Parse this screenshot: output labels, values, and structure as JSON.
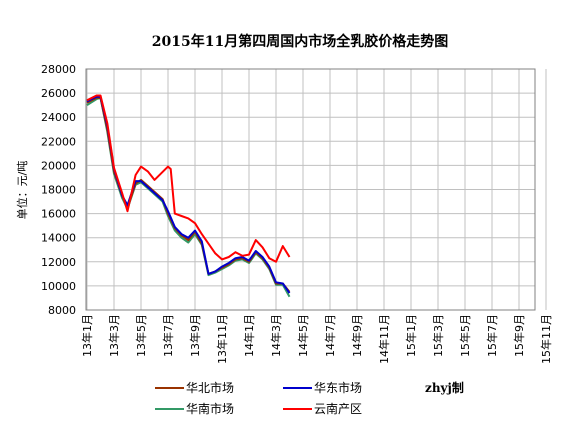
{
  "chart_data": {
    "type": "line",
    "title": "2015年11月第四周国内市场全乳胶价格走势图",
    "ylabel": "单位：元/吨",
    "xlabel": "",
    "ylim": [
      8000,
      28000
    ],
    "yticks": [
      8000,
      10000,
      12000,
      14000,
      16000,
      18000,
      20000,
      22000,
      24000,
      26000,
      28000
    ],
    "x_categories": [
      "13年1月",
      "13年3月",
      "13年5月",
      "13年7月",
      "13年9月",
      "13年11月",
      "14年1月",
      "14年3月",
      "14年5月",
      "14年7月",
      "14年9月",
      "14年11月",
      "15年1月",
      "15年3月",
      "15年5月",
      "15年7月",
      "15年9月",
      "15年11月"
    ],
    "grid": true,
    "legend_position": "bottom",
    "credit": "zhyj制",
    "series": [
      {
        "name": "华北市场",
        "color": "#993300",
        "points": [
          [
            0,
            25200
          ],
          [
            0.7,
            25600
          ],
          [
            1.0,
            25600
          ],
          [
            1.5,
            23000
          ],
          [
            2.0,
            19500
          ],
          [
            2.6,
            17500
          ],
          [
            3.0,
            16500
          ],
          [
            3.6,
            18500
          ],
          [
            4.0,
            18800
          ],
          [
            4.5,
            18300
          ],
          [
            5.0,
            17800
          ],
          [
            5.6,
            17200
          ],
          [
            6.0,
            16000
          ],
          [
            6.5,
            14800
          ],
          [
            7.0,
            14200
          ],
          [
            7.5,
            13800
          ],
          [
            8.0,
            14500
          ],
          [
            8.5,
            13500
          ],
          [
            9.0,
            11000
          ],
          [
            9.5,
            11200
          ],
          [
            10.0,
            11500
          ],
          [
            10.5,
            11800
          ],
          [
            11.0,
            12200
          ],
          [
            11.5,
            12300
          ],
          [
            12.0,
            12000
          ],
          [
            12.5,
            12800
          ],
          [
            13.0,
            12300
          ],
          [
            13.5,
            11500
          ],
          [
            14.0,
            10200
          ],
          [
            14.5,
            10200
          ],
          [
            15.0,
            9500
          ]
        ]
      },
      {
        "name": "华东市场",
        "color": "#0000cc",
        "points": [
          [
            0,
            25300
          ],
          [
            0.7,
            25700
          ],
          [
            1.0,
            25700
          ],
          [
            1.5,
            23300
          ],
          [
            2.0,
            19700
          ],
          [
            2.6,
            17500
          ],
          [
            3.0,
            16700
          ],
          [
            3.6,
            18700
          ],
          [
            4.0,
            18700
          ],
          [
            4.5,
            18200
          ],
          [
            5.0,
            17700
          ],
          [
            5.6,
            17100
          ],
          [
            6.0,
            16200
          ],
          [
            6.5,
            14900
          ],
          [
            7.0,
            14300
          ],
          [
            7.5,
            14000
          ],
          [
            8.0,
            14600
          ],
          [
            8.5,
            13700
          ],
          [
            9.0,
            11000
          ],
          [
            9.5,
            11200
          ],
          [
            10.0,
            11600
          ],
          [
            10.5,
            11900
          ],
          [
            11.0,
            12300
          ],
          [
            11.5,
            12400
          ],
          [
            12.0,
            12100
          ],
          [
            12.5,
            12900
          ],
          [
            13.0,
            12400
          ],
          [
            13.5,
            11600
          ],
          [
            14.0,
            10300
          ],
          [
            14.5,
            10200
          ],
          [
            15.0,
            9400
          ]
        ]
      },
      {
        "name": "华南市场",
        "color": "#339966",
        "points": [
          [
            0,
            25000
          ],
          [
            0.7,
            25500
          ],
          [
            1.0,
            25600
          ],
          [
            1.5,
            22800
          ],
          [
            2.0,
            19300
          ],
          [
            2.6,
            17300
          ],
          [
            3.0,
            16400
          ],
          [
            3.6,
            18400
          ],
          [
            4.0,
            18600
          ],
          [
            4.5,
            18100
          ],
          [
            5.0,
            17600
          ],
          [
            5.6,
            17000
          ],
          [
            6.0,
            15800
          ],
          [
            6.5,
            14600
          ],
          [
            7.0,
            14000
          ],
          [
            7.5,
            13600
          ],
          [
            8.0,
            14300
          ],
          [
            8.5,
            13400
          ],
          [
            9.0,
            10900
          ],
          [
            9.5,
            11100
          ],
          [
            10.0,
            11400
          ],
          [
            10.5,
            11700
          ],
          [
            11.0,
            12100
          ],
          [
            11.5,
            12200
          ],
          [
            12.0,
            11900
          ],
          [
            12.5,
            12700
          ],
          [
            13.0,
            12200
          ],
          [
            13.5,
            11400
          ],
          [
            14.0,
            10100
          ],
          [
            14.5,
            10100
          ],
          [
            15.0,
            9100
          ]
        ]
      },
      {
        "name": "云南产区",
        "color": "#ff0000",
        "points": [
          [
            0,
            25400
          ],
          [
            0.7,
            25800
          ],
          [
            1.0,
            25800
          ],
          [
            1.5,
            23500
          ],
          [
            2.0,
            19800
          ],
          [
            2.6,
            17700
          ],
          [
            3.0,
            16200
          ],
          [
            3.6,
            19200
          ],
          [
            4.0,
            19900
          ],
          [
            4.5,
            19500
          ],
          [
            5.0,
            18800
          ],
          [
            6.0,
            19900
          ],
          [
            6.2,
            19700
          ],
          [
            6.5,
            16000
          ],
          [
            7.0,
            15800
          ],
          [
            7.5,
            15600
          ],
          [
            8.0,
            15200
          ],
          [
            8.5,
            14300
          ],
          [
            9.0,
            13500
          ],
          [
            9.5,
            12700
          ],
          [
            10.0,
            12200
          ],
          [
            10.5,
            12400
          ],
          [
            11.0,
            12800
          ],
          [
            11.5,
            12500
          ],
          [
            12.0,
            12600
          ],
          [
            12.5,
            13800
          ],
          [
            13.0,
            13200
          ],
          [
            13.5,
            12300
          ],
          [
            14.0,
            12000
          ],
          [
            14.5,
            13300
          ],
          [
            15.0,
            12400
          ]
        ]
      }
    ]
  }
}
